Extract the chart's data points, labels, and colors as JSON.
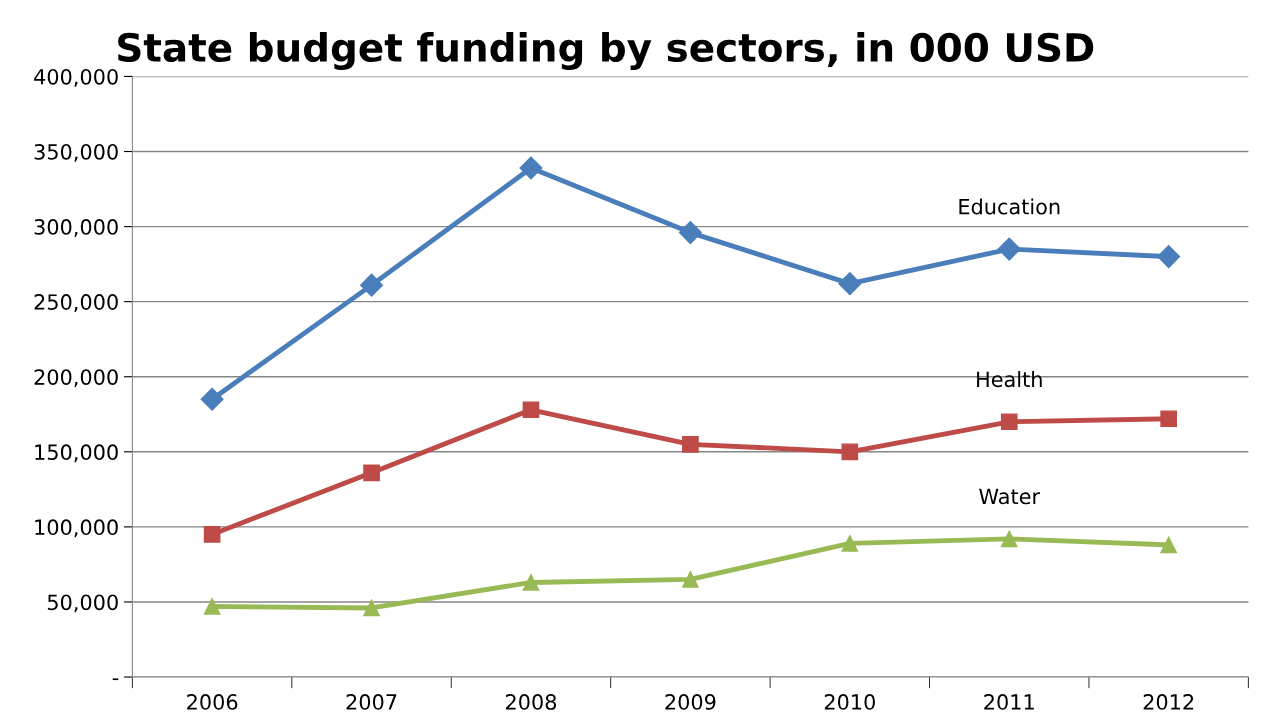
{
  "chart_data": {
    "type": "line",
    "title": "State budget funding by sectors, in 000 USD",
    "categories": [
      "2006",
      "2007",
      "2008",
      "2009",
      "2010",
      "2011",
      "2012"
    ],
    "series": [
      {
        "name": "Education",
        "color": "#4a7ebb",
        "marker": "diamond",
        "values": [
          185000,
          261000,
          339000,
          296000,
          262000,
          285000,
          280000
        ]
      },
      {
        "name": "Health",
        "color": "#be4b48",
        "marker": "square",
        "values": [
          95000,
          136000,
          178000,
          155000,
          150000,
          170000,
          172000
        ]
      },
      {
        "name": "Water",
        "color": "#98b954",
        "marker": "triangle",
        "values": [
          47000,
          46000,
          63000,
          65000,
          89000,
          92000,
          88000
        ]
      }
    ],
    "ylim": [
      0,
      400000
    ],
    "yticks": [
      {
        "value": 0,
        "label": "-"
      },
      {
        "value": 50000,
        "label": "50,000"
      },
      {
        "value": 100000,
        "label": "100,000"
      },
      {
        "value": 150000,
        "label": "150,000"
      },
      {
        "value": 200000,
        "label": "200,000"
      },
      {
        "value": 250000,
        "label": "250,000"
      },
      {
        "value": 300000,
        "label": "300,000"
      },
      {
        "value": 350000,
        "label": "350,000"
      },
      {
        "value": 400000,
        "label": "400,000"
      }
    ],
    "grid": "y",
    "line_style": "solid",
    "legend": false
  }
}
